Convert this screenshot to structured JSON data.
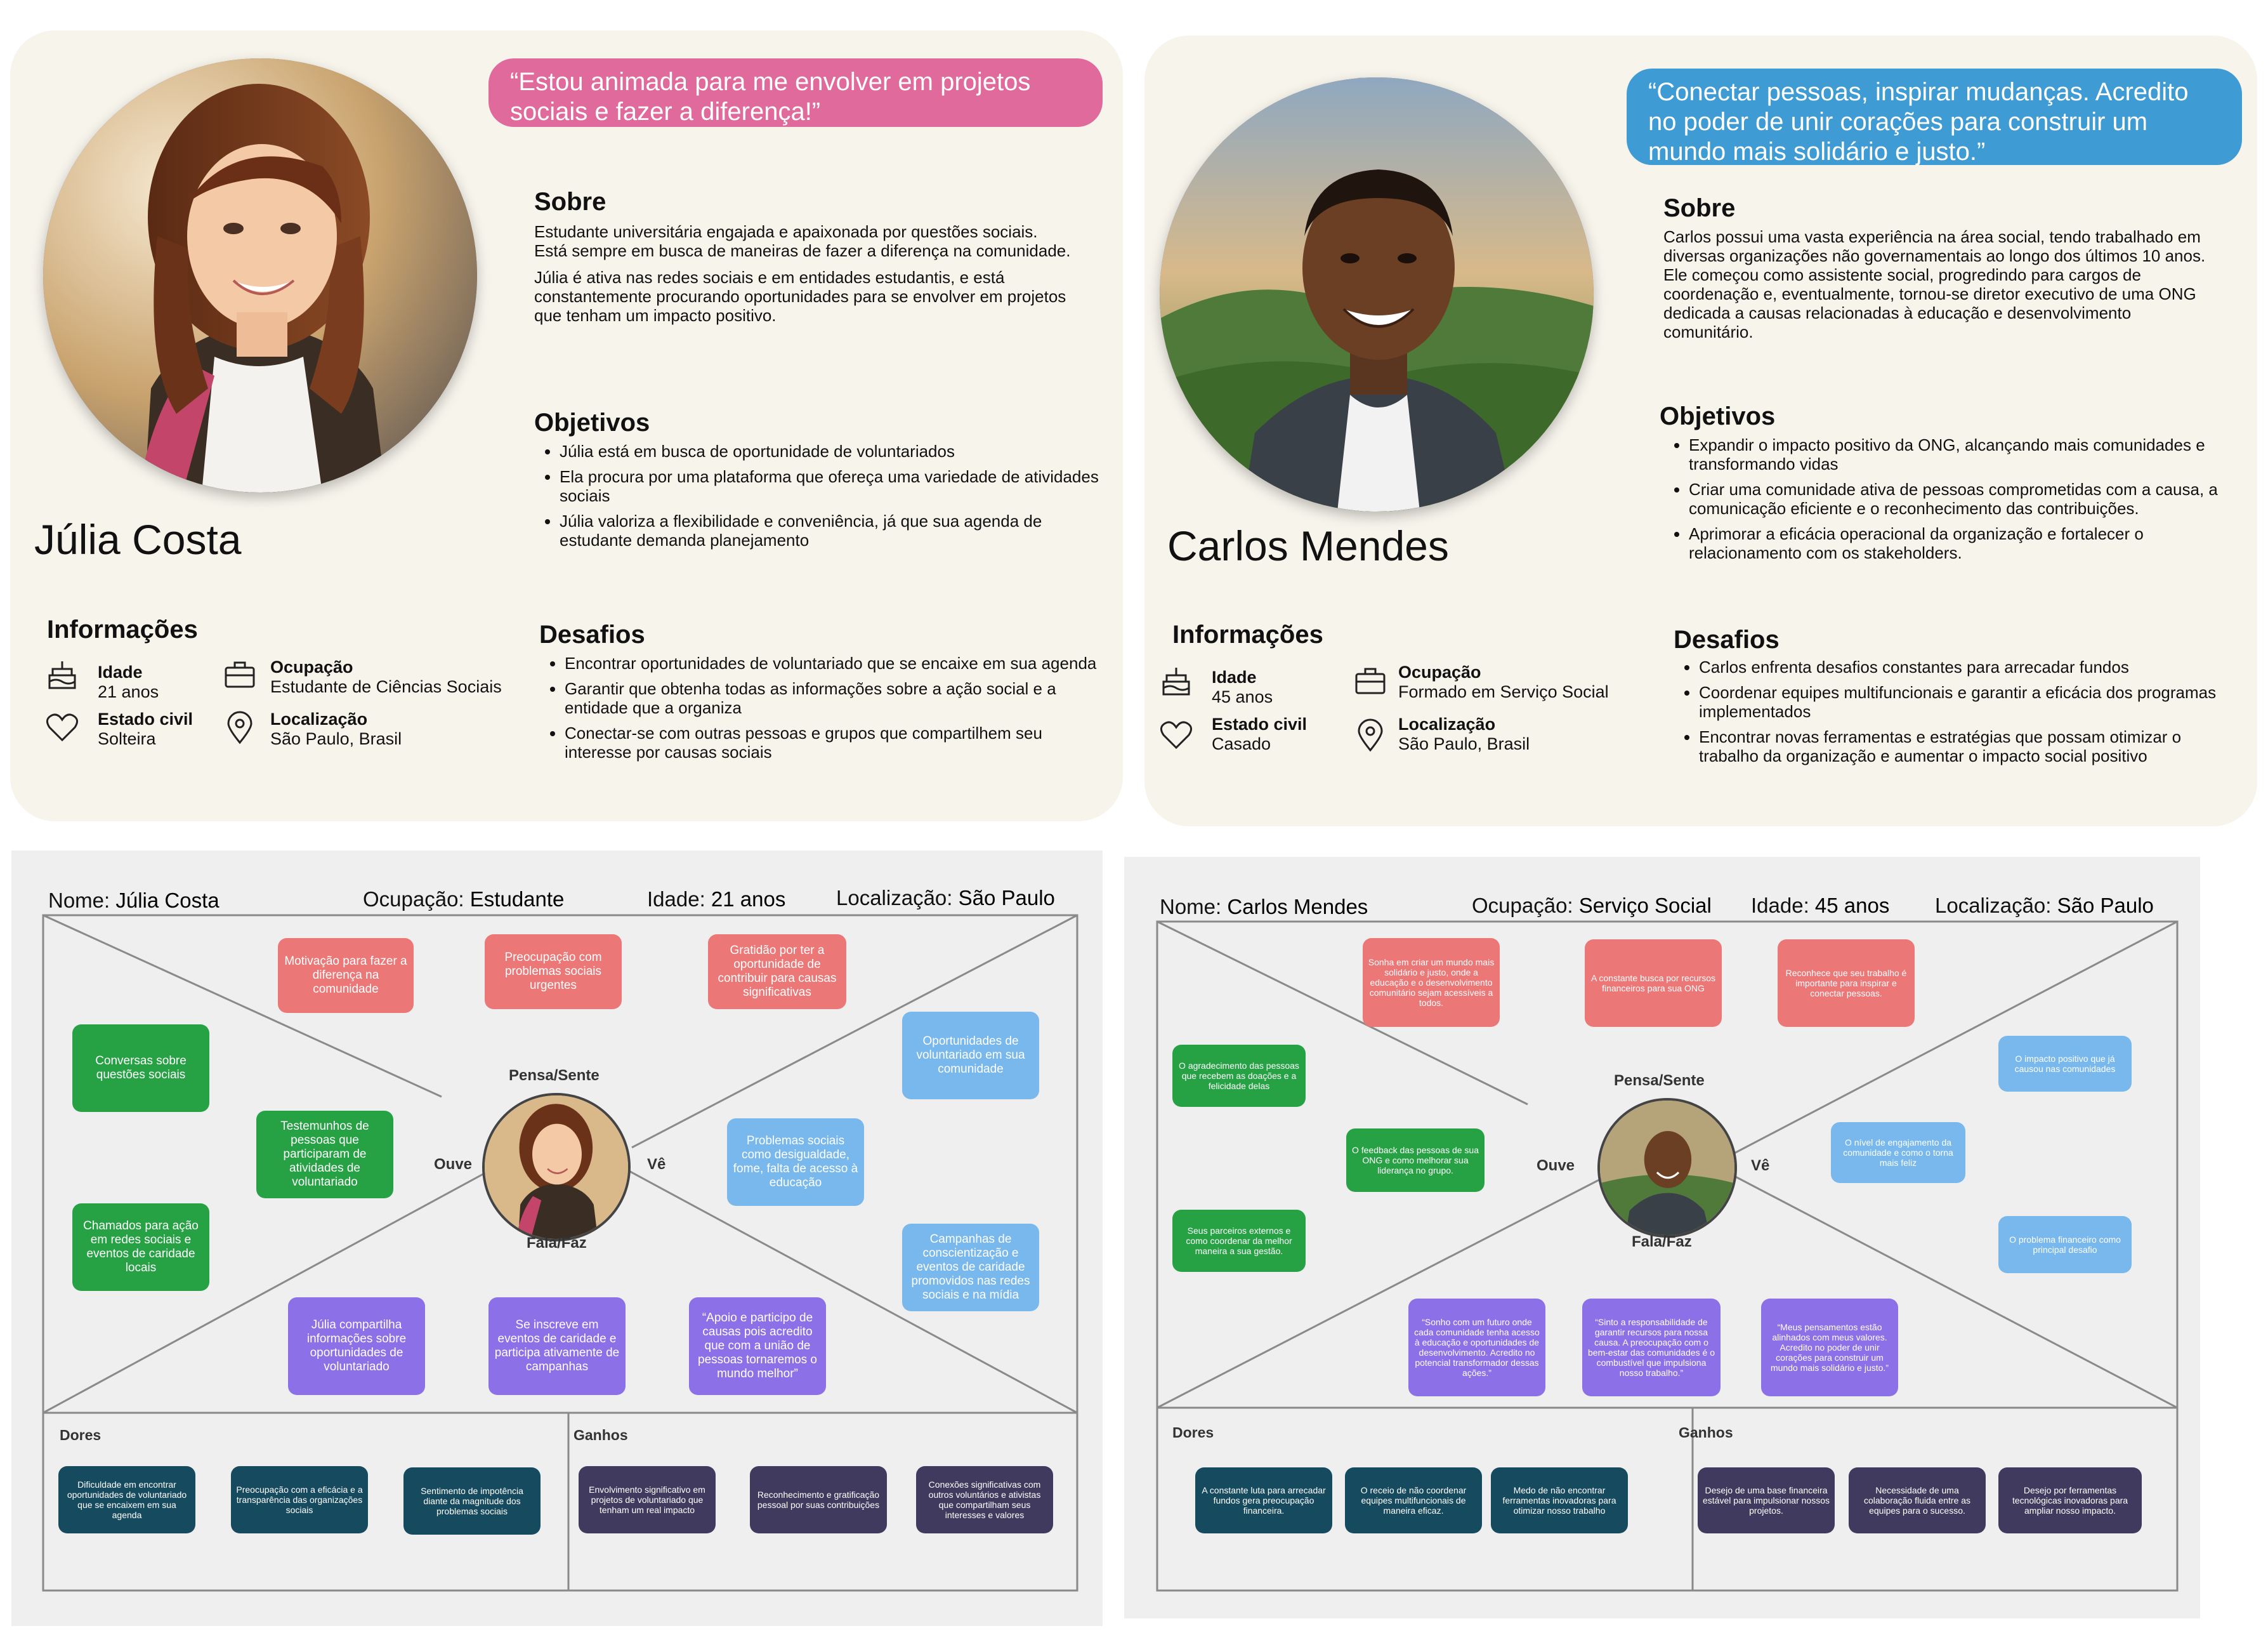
{
  "persona1": {
    "quote": "“Estou animada para me envolver em projetos sociais e fazer a diferença!”",
    "name": "Júlia Costa",
    "sobre_title": "Sobre",
    "sobre_p1": "Estudante universitária engajada e apaixonada por questões sociais. Está sempre em busca de maneiras de fazer a diferença na comunidade.",
    "sobre_p2": "Júlia é ativa nas redes sociais e em entidades estudantis, e está constantemente procurando oportunidades para se envolver em projetos que tenham um impacto positivo.",
    "objetivos_title": "Objetivos",
    "objetivos": [
      "Júlia está em busca de oportunidade de voluntariados",
      "Ela procura por uma plataforma que ofereça uma variedade de atividades sociais",
      "Júlia valoriza a flexibilidade e conveniência, já que sua agenda de estudante demanda planejamento"
    ],
    "informacoes_title": "Informações",
    "idade_label": "Idade",
    "idade": "21 anos",
    "ocupacao_label": "Ocupação",
    "ocupacao": "Estudante de Ciências Sociais",
    "estado_label": "Estado civil",
    "estado": "Solteira",
    "localizacao_label": "Localização",
    "localizacao": "São Paulo, Brasil",
    "desafios_title": "Desafios",
    "desafios": [
      "Encontrar oportunidades de voluntariado que se encaixe em sua agenda",
      "Garantir que obtenha todas as informações sobre a ação social e a entidade que a organiza",
      "Conectar-se com outras pessoas e grupos que compartilhem seu interesse por causas sociais"
    ]
  },
  "persona2": {
    "quote": "“Conectar pessoas, inspirar mudanças. Acredito no poder de unir corações para construir um mundo mais solidário e justo.”",
    "name": "Carlos Mendes",
    "sobre_title": "Sobre",
    "sobre_p1": "Carlos possui uma vasta experiência na área social, tendo trabalhado em diversas organizações não governamentais ao longo dos últimos 10 anos. Ele começou como assistente social, progredindo para cargos de coordenação e, eventualmente, tornou-se diretor executivo de uma ONG dedicada a causas relacionadas à educação e desenvolvimento comunitário.",
    "objetivos_title": "Objetivos",
    "objetivos": [
      "Expandir o impacto positivo da ONG, alcançando mais comunidades e transformando vidas",
      "Criar uma comunidade ativa de pessoas comprometidas com a causa, a comunicação eficiente e o reconhecimento das contribuições.",
      "Aprimorar a eficácia operacional da organização e fortalecer o relacionamento com os stakeholders."
    ],
    "informacoes_title": "Informações",
    "idade_label": "Idade",
    "idade": "45 anos",
    "ocupacao_label": "Ocupação",
    "ocupacao": "Formado em Serviço Social",
    "estado_label": "Estado civil",
    "estado": "Casado",
    "localizacao_label": "Localização",
    "localizacao": "São Paulo, Brasil",
    "desafios_title": "Desafios",
    "desafios": [
      "Carlos enfrenta desafios constantes para arrecadar fundos",
      "Coordenar equipes multifuncionais e garantir a eficácia dos programas implementados",
      "Encontrar novas ferramentas e estratégias que possam otimizar o trabalho da organização e aumentar o impacto social positivo"
    ]
  },
  "map1": {
    "nome_label": "Nome:",
    "nome": "Júlia Costa",
    "ocupacao_label": "Ocupação:",
    "ocupacao": "Estudante",
    "idade_label": "Idade:",
    "idade": "21 anos",
    "localizacao_label": "Localização:",
    "localizacao": "São Paulo",
    "pensa": "Pensa/Sente",
    "ouve": "Ouve",
    "ve": "Vê",
    "fala": "Fala/Faz",
    "pensa_notes": [
      "Motivação para fazer a diferença na comunidade",
      "Preocupação com problemas sociais urgentes",
      "Gratidão por ter a oportunidade de contribuir para causas significativas"
    ],
    "ouve_notes": [
      "Conversas sobre questões sociais",
      "Testemunhos de pessoas que participaram de atividades de voluntariado",
      "Chamados para ação em redes sociais e eventos de caridade locais"
    ],
    "ve_notes": [
      "Oportunidades de voluntariado em sua comunidade",
      "Problemas sociais como desigualdade, fome, falta de acesso à educação",
      "Campanhas de conscientização e eventos de caridade promovidos nas redes sociais e na mídia"
    ],
    "fala_notes": [
      "Júlia compartilha informações sobre oportunidades de voluntariado",
      "Se inscreve em eventos de caridade e participa ativamente de campanhas",
      "“Apoio e participo de causas pois acredito que com a união de pessoas tornaremos o mundo melhor”"
    ],
    "dores_title": "Dores",
    "dores": [
      "Dificuldade em encontrar oportunidades de voluntariado que se encaixem em sua agenda",
      "Preocupação com a eficácia e a transparência das organizações sociais",
      "Sentimento de impotência diante da magnitude dos problemas sociais"
    ],
    "ganhos_title": "Ganhos",
    "ganhos": [
      "Envolvimento significativo em projetos de voluntariado que tenham um real impacto",
      "Reconhecimento e gratificação pessoal por suas contribuições",
      "Conexões significativas com outros voluntários e ativistas que compartilham seus interesses e valores"
    ]
  },
  "map2": {
    "nome_label": "Nome:",
    "nome": "Carlos Mendes",
    "ocupacao_label": "Ocupação:",
    "ocupacao": "Serviço Social",
    "idade_label": "Idade:",
    "idade": "45 anos",
    "localizacao_label": "Localização:",
    "localizacao": "São Paulo",
    "pensa": "Pensa/Sente",
    "ouve": "Ouve",
    "ve": "Vê",
    "fala": "Fala/Faz",
    "pensa_notes": [
      "Sonha em criar um mundo mais solidário e justo, onde a educação e o desenvolvimento comunitário sejam acessíveis a todos.",
      "A constante busca por recursos financeiros para sua ONG",
      "Reconhece que seu trabalho é importante para inspirar e conectar pessoas."
    ],
    "ouve_notes": [
      "O agradecimento das pessoas que recebem as doações e a felicidade delas",
      "O feedback das pessoas de sua ONG e como melhorar sua liderança no grupo.",
      "Seus parceiros externos e como coordenar da melhor maneira a sua gestão."
    ],
    "ve_notes": [
      "O impacto positivo que já causou nas comunidades",
      "O nível de engajamento da comunidade e como o torna mais feliz",
      "O problema financeiro como principal desafio"
    ],
    "fala_notes": [
      "“Sonho com um futuro onde cada comunidade tenha acesso à educação e oportunidades de desenvolvimento. Acredito no potencial transformador dessas ações.”",
      "“Sinto a responsabilidade de garantir recursos para nossa causa. A preocupação com o bem-estar das comunidades é o combustível que impulsiona nosso trabalho.”",
      "“Meus pensamentos estão alinhados com meus valores. Acredito no poder de unir corações para construir um mundo mais solidário e justo.”"
    ],
    "dores_title": "Dores",
    "dores": [
      "A constante luta para arrecadar fundos gera preocupação financeira.",
      "O receio de não coordenar equipes multifuncionais de maneira eficaz.",
      "Medo de não encontrar ferramentas inovadoras para otimizar nosso trabalho"
    ],
    "ganhos_title": "Ganhos",
    "ganhos": [
      "Desejo de uma base financeira estável para impulsionar nossos projetos.",
      "Necessidade de uma colaboração fluida entre as equipes para o sucesso.",
      "Desejo por ferramentas tecnológicas inovadoras para ampliar nosso impacto."
    ]
  },
  "colors": {
    "card_bg": "#f7f4ec",
    "quote_pink": "#e06a9b",
    "quote_blue": "#3f9bd3",
    "note_red": "#ec7777",
    "note_green": "#26a244",
    "note_blue": "#78b8ec",
    "note_purple": "#8c70e8",
    "note_navy": "#164a5e",
    "note_plum": "#3f3a5e"
  },
  "icons": [
    "cake-icon",
    "briefcase-icon",
    "heart-icon",
    "location-pin-icon"
  ]
}
